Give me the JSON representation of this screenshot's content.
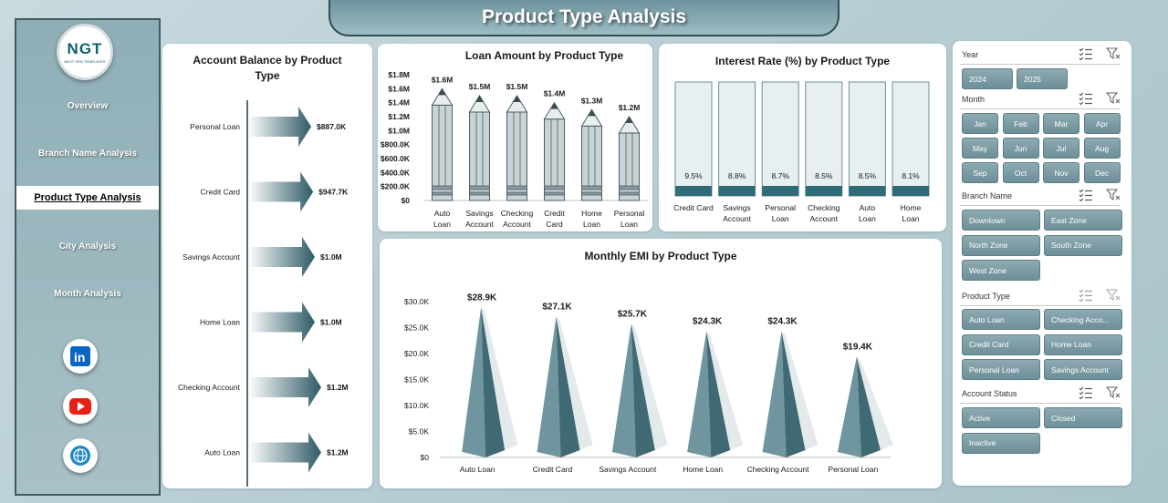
{
  "title": "Product Type Analysis",
  "logo": {
    "main": "NGT",
    "sub": "NEXT GEN TEMPLATES"
  },
  "nav": [
    "Overview",
    "Branch Name Analysis",
    "Product Type Analysis",
    "City Analysis",
    "Month Analysis"
  ],
  "social": [
    "linkedin-icon",
    "youtube-icon",
    "globe-icon"
  ],
  "colors": {
    "accent": "#5f8790",
    "dark": "#2f5560",
    "panel": "#ffffff",
    "pencil": "#c8d4d6"
  },
  "slicers": {
    "year": {
      "label": "Year",
      "items": [
        "2024",
        "2025"
      ]
    },
    "month": {
      "label": "Month",
      "items": [
        "Jan",
        "Feb",
        "Mar",
        "Apr",
        "May",
        "Jun",
        "Jul",
        "Aug",
        "Sep",
        "Oct",
        "Nov",
        "Dec"
      ]
    },
    "branch": {
      "label": "Branch Name",
      "items": [
        "Downtown",
        "East Zone",
        "North Zone",
        "South Zone",
        "West Zone"
      ]
    },
    "product": {
      "label": "Product Type",
      "items": [
        "Auto Loan",
        "Checking Acco...",
        "Credit Card",
        "Home Loan",
        "Personal Loan",
        "Savings Account"
      ]
    },
    "status": {
      "label": "Account Status",
      "items": [
        "Active",
        "Closed",
        "Inactive"
      ]
    }
  },
  "chart_data": [
    {
      "type": "bar",
      "title": "Account Balance by Product Type",
      "categories": [
        "Personal Loan",
        "Credit Card",
        "Savings Account",
        "Home Loan",
        "Checking Account",
        "Auto Loan"
      ],
      "values": [
        887000,
        947700,
        1000000,
        1000000,
        1200000,
        1200000
      ],
      "labels": [
        "$887.0K",
        "$947.7K",
        "$1.0M",
        "$1.0M",
        "$1.2M",
        "$1.2M"
      ]
    },
    {
      "type": "bar",
      "title": "Loan Amount by Product Type",
      "categories": [
        "Auto Loan",
        "Savings Account",
        "Checking Account",
        "Credit Card",
        "Home Loan",
        "Personal Loan"
      ],
      "values": [
        1600000,
        1500000,
        1500000,
        1400000,
        1300000,
        1200000
      ],
      "labels": [
        "$1.6M",
        "$1.5M",
        "$1.5M",
        "$1.4M",
        "$1.3M",
        "$1.2M"
      ],
      "yticks": [
        "$0",
        "$200.0K",
        "$400.0K",
        "$600.0K",
        "$800.0K",
        "$1.0M",
        "$1.2M",
        "$1.4M",
        "$1.6M",
        "$1.8M"
      ],
      "ylim": [
        0,
        1800000
      ]
    },
    {
      "type": "bar",
      "title": "Interest Rate (%) by Product Type",
      "categories": [
        "Credit Card",
        "Savings Account",
        "Personal Loan",
        "Checking Account",
        "Auto Loan",
        "Home Loan"
      ],
      "values": [
        9.5,
        8.8,
        8.7,
        8.5,
        8.5,
        8.1
      ],
      "labels": [
        "9.5%",
        "8.8%",
        "8.7%",
        "8.5%",
        "8.5%",
        "8.1%"
      ]
    },
    {
      "type": "bar",
      "title": "Monthly EMI by Product Type",
      "categories": [
        "Auto Loan",
        "Credit Card",
        "Savings Account",
        "Home Loan",
        "Checking Account",
        "Personal Loan"
      ],
      "values": [
        28900,
        27100,
        25700,
        24300,
        24300,
        19400
      ],
      "labels": [
        "$28.9K",
        "$27.1K",
        "$25.7K",
        "$24.3K",
        "$24.3K",
        "$19.4K"
      ],
      "yticks": [
        "$0",
        "$5.0K",
        "$10.0K",
        "$15.0K",
        "$20.0K",
        "$25.0K",
        "$30.0K"
      ],
      "ylim": [
        0,
        30000
      ]
    }
  ]
}
